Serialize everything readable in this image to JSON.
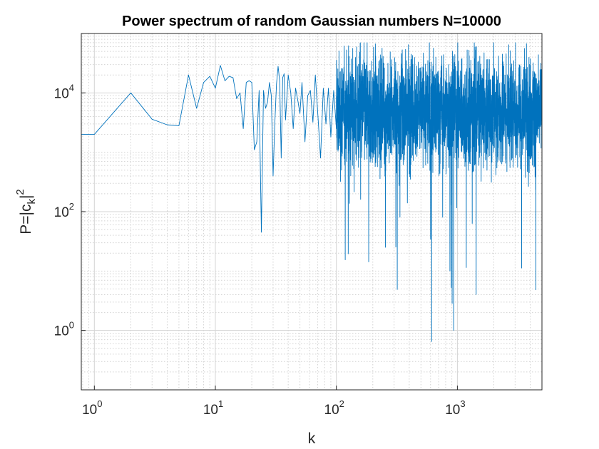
{
  "chart_data": {
    "type": "line",
    "title": "Power spectrum of random Gaussian numbers N=10000",
    "xlabel": "k",
    "ylabel": {
      "base": "P=|c",
      "sub": "k",
      "tail": "|",
      "sup": "2"
    },
    "x_scale": "log",
    "y_scale": "log",
    "xlim": [
      0.78,
      5000
    ],
    "ylim": [
      0.1,
      100000
    ],
    "grid": true,
    "minor_grid": true,
    "x_ticks": [
      {
        "value": 1,
        "base": "10",
        "exp": "0"
      },
      {
        "value": 10,
        "base": "10",
        "exp": "1"
      },
      {
        "value": 100,
        "base": "10",
        "exp": "2"
      },
      {
        "value": 1000,
        "base": "10",
        "exp": "3"
      }
    ],
    "y_ticks": [
      {
        "value": 1,
        "base": "10",
        "exp": "0"
      },
      {
        "value": 100,
        "base": "10",
        "exp": "2"
      },
      {
        "value": 10000,
        "base": "10",
        "exp": "4"
      }
    ],
    "series": [
      {
        "color": "#0072bd",
        "x": [
          0.78,
          1,
          2,
          3,
          4,
          5,
          6,
          7,
          8,
          9,
          10,
          11,
          12,
          13,
          14,
          15,
          16,
          17,
          18,
          19,
          20,
          21,
          22,
          23,
          24,
          25,
          26,
          27,
          28,
          29,
          30,
          31,
          32,
          33,
          34,
          35,
          36,
          37,
          38,
          40,
          42,
          44,
          46,
          48,
          50,
          52,
          55,
          58,
          61,
          64,
          67,
          70,
          74,
          78,
          82,
          86,
          90,
          95,
          100
        ],
        "values": [
          2000,
          2000,
          10000,
          3600,
          2900,
          2800,
          20000,
          5500,
          15000,
          19000,
          12000,
          29000,
          16000,
          19000,
          18000,
          8000,
          10000,
          2500,
          15000,
          16000,
          15000,
          1100,
          1500,
          11000,
          45,
          11000,
          5500,
          7000,
          15000,
          9000,
          400,
          3000,
          14000,
          28000,
          16000,
          800,
          18000,
          21000,
          3500,
          20000,
          10000,
          2500,
          12000,
          7500,
          4500,
          15000,
          1500,
          9000,
          11000,
          3200,
          20000,
          5000,
          800,
          12000,
          3000,
          12000,
          1800,
          11000,
          2500
        ]
      }
    ],
    "noise_band": {
      "x_start": 100,
      "x_end": 5000,
      "points": 2600,
      "median": 5000,
      "spread_decades": 0.85,
      "max": 70000
    }
  }
}
